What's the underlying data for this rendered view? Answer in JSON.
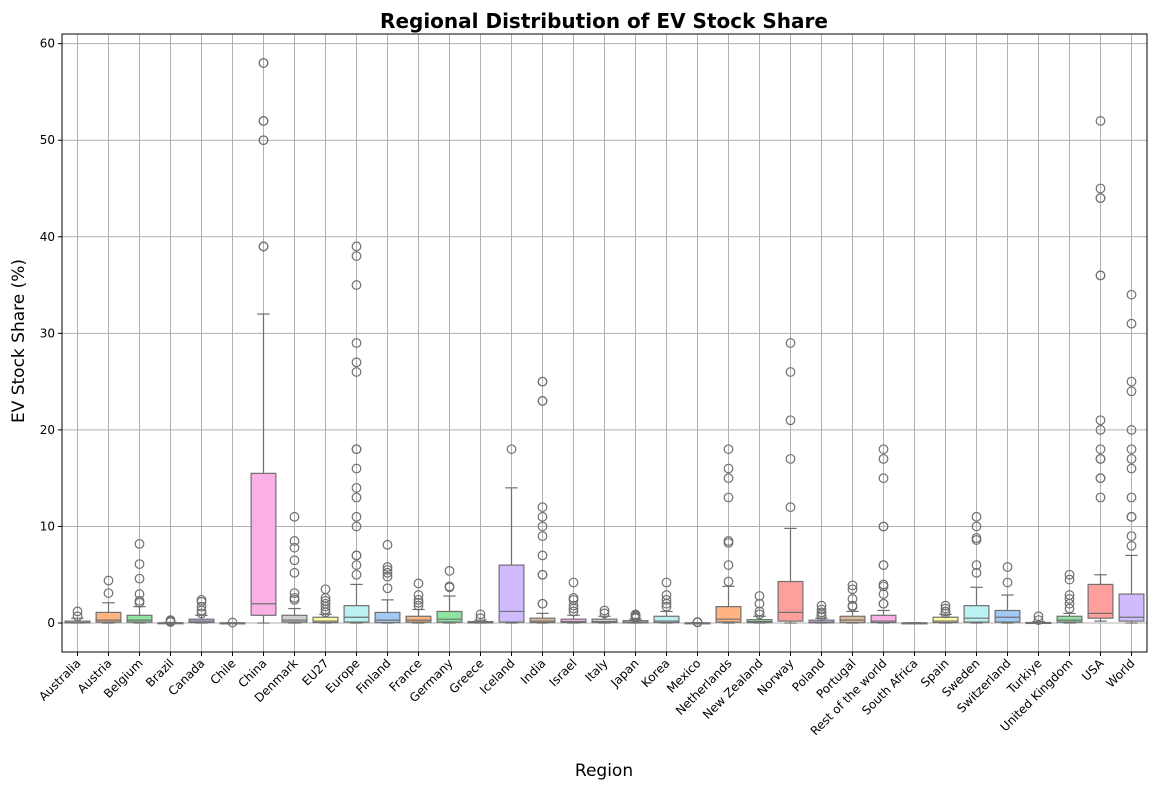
{
  "chart_data": {
    "type": "box",
    "title": "Regional Distribution of EV Stock Share",
    "xlabel": "Region",
    "ylabel": "EV Stock Share (%)",
    "ylim": [
      -3,
      61
    ],
    "yticks": [
      0,
      10,
      20,
      30,
      40,
      50,
      60
    ],
    "grid": true,
    "categories": [
      "Australia",
      "Austria",
      "Belgium",
      "Brazil",
      "Canada",
      "Chile",
      "China",
      "Denmark",
      "EU27",
      "Europe",
      "Finland",
      "France",
      "Germany",
      "Greece",
      "Iceland",
      "India",
      "Israel",
      "Italy",
      "Japan",
      "Korea",
      "Mexico",
      "Netherlands",
      "New Zealand",
      "Norway",
      "Poland",
      "Portugal",
      "Rest of the world",
      "South Africa",
      "Spain",
      "Sweden",
      "Switzerland",
      "Turkiye",
      "United Kingdom",
      "USA",
      "World"
    ],
    "boxes": [
      {
        "region": "Australia",
        "whislo": 0,
        "q1": 0.02,
        "med": 0.05,
        "q3": 0.2,
        "whishi": 0.5,
        "fliers": [
          0.7,
          1.2
        ],
        "color": "#a1c9f4"
      },
      {
        "region": "Austria",
        "whislo": 0,
        "q1": 0.1,
        "med": 0.3,
        "q3": 1.1,
        "whishi": 2.1,
        "fliers": [
          3.1,
          4.4
        ],
        "color": "#ffb482"
      },
      {
        "region": "Belgium",
        "whislo": 0,
        "q1": 0.1,
        "med": 0.3,
        "q3": 0.8,
        "whishi": 1.7,
        "fliers": [
          2.1,
          2.3,
          3.0,
          4.6,
          6.1,
          8.2
        ],
        "color": "#8de5a1"
      },
      {
        "region": "Brazil",
        "whislo": 0,
        "q1": 0.0,
        "med": 0.01,
        "q3": 0.03,
        "whishi": 0.07,
        "fliers": [
          0.1,
          0.2,
          0.3
        ],
        "color": "#ff9f9b"
      },
      {
        "region": "Canada",
        "whislo": 0,
        "q1": 0.05,
        "med": 0.2,
        "q3": 0.4,
        "whishi": 0.8,
        "fliers": [
          1.0,
          1.3,
          1.7,
          2.2,
          2.4
        ],
        "color": "#d0bbff"
      },
      {
        "region": "Chile",
        "whislo": 0,
        "q1": 0.0,
        "med": 0.01,
        "q3": 0.02,
        "whishi": 0.03,
        "fliers": [
          0.05
        ],
        "color": "#debb9b"
      },
      {
        "region": "China",
        "whislo": 0,
        "q1": 0.8,
        "med": 2.0,
        "q3": 15.5,
        "whishi": 32,
        "fliers": [
          39,
          39,
          50,
          50,
          52,
          52,
          58,
          58
        ],
        "color": "#fab0e4"
      },
      {
        "region": "Denmark",
        "whislo": 0,
        "q1": 0.1,
        "med": 0.3,
        "q3": 0.8,
        "whishi": 1.5,
        "fliers": [
          2.4,
          2.6,
          3.1,
          5.2,
          6.5,
          7.8,
          8.5,
          11
        ],
        "color": "#cfcfcf"
      },
      {
        "region": "EU27",
        "whislo": 0,
        "q1": 0.05,
        "med": 0.2,
        "q3": 0.6,
        "whishi": 0.9,
        "fliers": [
          1.1,
          1.4,
          1.7,
          2.0,
          2.3,
          2.6,
          3.5
        ],
        "color": "#fffea3"
      },
      {
        "region": "Europe",
        "whislo": 0,
        "q1": 0.1,
        "med": 0.6,
        "q3": 1.8,
        "whishi": 4.0,
        "fliers": [
          5,
          6,
          7,
          7,
          10,
          11,
          13,
          14,
          16,
          18,
          18,
          26,
          27,
          29,
          35,
          38,
          39
        ],
        "color": "#b9f2f0"
      },
      {
        "region": "Finland",
        "whislo": 0,
        "q1": 0.05,
        "med": 0.3,
        "q3": 1.1,
        "whishi": 2.4,
        "fliers": [
          3.6,
          4.8,
          5.2,
          5.5,
          5.8,
          8.1
        ],
        "color": "#a1c9f4"
      },
      {
        "region": "France",
        "whislo": 0,
        "q1": 0.1,
        "med": 0.3,
        "q3": 0.7,
        "whishi": 1.4,
        "fliers": [
          1.8,
          2.1,
          2.4,
          2.9,
          4.1
        ],
        "color": "#ffb482"
      },
      {
        "region": "Germany",
        "whislo": 0,
        "q1": 0.1,
        "med": 0.4,
        "q3": 1.2,
        "whishi": 2.8,
        "fliers": [
          3.7,
          3.8,
          5.4
        ],
        "color": "#8de5a1"
      },
      {
        "region": "Greece",
        "whislo": 0,
        "q1": 0.01,
        "med": 0.05,
        "q3": 0.15,
        "whishi": 0.3,
        "fliers": [
          0.5,
          0.9
        ],
        "color": "#ff9f9b"
      },
      {
        "region": "Iceland",
        "whislo": 0,
        "q1": 0.1,
        "med": 1.2,
        "q3": 6.0,
        "whishi": 14,
        "fliers": [
          18
        ],
        "color": "#d0bbff"
      },
      {
        "region": "India",
        "whislo": 0,
        "q1": 0.05,
        "med": 0.2,
        "q3": 0.5,
        "whishi": 1.0,
        "fliers": [
          2,
          2,
          5,
          5,
          7,
          9,
          10,
          11,
          12,
          23,
          23,
          25,
          25
        ],
        "color": "#debb9b"
      },
      {
        "region": "Israel",
        "whislo": 0,
        "q1": 0.05,
        "med": 0.15,
        "q3": 0.4,
        "whishi": 0.8,
        "fliers": [
          1.2,
          1.5,
          1.8,
          2.4,
          2.6,
          4.2
        ],
        "color": "#fab0e4"
      },
      {
        "region": "Italy",
        "whislo": 0,
        "q1": 0.05,
        "med": 0.15,
        "q3": 0.4,
        "whishi": 0.7,
        "fliers": [
          1.0,
          1.3
        ],
        "color": "#cfcfcf"
      },
      {
        "region": "Japan",
        "whislo": 0,
        "q1": 0.02,
        "med": 0.1,
        "q3": 0.25,
        "whishi": 0.4,
        "fliers": [
          0.5,
          0.6,
          0.7,
          0.8,
          0.9
        ],
        "color": "#fffea3"
      },
      {
        "region": "Korea",
        "whislo": 0,
        "q1": 0.05,
        "med": 0.2,
        "q3": 0.7,
        "whishi": 1.2,
        "fliers": [
          1.7,
          2.0,
          2.4,
          2.9,
          4.2
        ],
        "color": "#b9f2f0"
      },
      {
        "region": "Mexico",
        "whislo": 0,
        "q1": 0.0,
        "med": 0.01,
        "q3": 0.02,
        "whishi": 0.04,
        "fliers": [
          0.07,
          0.1
        ],
        "color": "#a1c9f4"
      },
      {
        "region": "Netherlands",
        "whislo": 0,
        "q1": 0.1,
        "med": 0.4,
        "q3": 1.7,
        "whishi": 3.8,
        "fliers": [
          4.3,
          6,
          8.3,
          8.5,
          13,
          15,
          16,
          18
        ],
        "color": "#ffb482"
      },
      {
        "region": "New Zealand",
        "whislo": 0,
        "q1": 0.05,
        "med": 0.15,
        "q3": 0.35,
        "whishi": 0.7,
        "fliers": [
          0.9,
          1.2,
          2.0,
          2.8
        ],
        "color": "#8de5a1"
      },
      {
        "region": "Norway",
        "whislo": 0,
        "q1": 0.2,
        "med": 1.1,
        "q3": 4.3,
        "whishi": 9.8,
        "fliers": [
          12,
          17,
          21,
          26,
          29
        ],
        "color": "#ff9f9b"
      },
      {
        "region": "Poland",
        "whislo": 0,
        "q1": 0.02,
        "med": 0.1,
        "q3": 0.3,
        "whishi": 0.5,
        "fliers": [
          0.7,
          0.9,
          1.1,
          1.4,
          1.8
        ],
        "color": "#d0bbff"
      },
      {
        "region": "Portugal",
        "whislo": 0,
        "q1": 0.05,
        "med": 0.3,
        "q3": 0.7,
        "whishi": 1.2,
        "fliers": [
          1.7,
          1.8,
          2.5,
          3.5,
          3.9
        ],
        "color": "#debb9b"
      },
      {
        "region": "Rest of the world",
        "whislo": 0,
        "q1": 0.05,
        "med": 0.2,
        "q3": 0.8,
        "whishi": 1.3,
        "fliers": [
          2,
          2,
          3,
          3.8,
          4,
          6,
          6,
          10,
          10,
          15,
          17,
          18
        ],
        "color": "#fab0e4"
      },
      {
        "region": "South Africa",
        "whislo": 0,
        "q1": 0.0,
        "med": 0.01,
        "q3": 0.02,
        "whishi": 0.04,
        "fliers": [],
        "color": "#cfcfcf"
      },
      {
        "region": "Spain",
        "whislo": 0,
        "q1": 0.05,
        "med": 0.2,
        "q3": 0.6,
        "whishi": 0.9,
        "fliers": [
          1.0,
          1.2,
          1.5,
          1.8
        ],
        "color": "#fffea3"
      },
      {
        "region": "Sweden",
        "whislo": 0,
        "q1": 0.1,
        "med": 0.5,
        "q3": 1.8,
        "whishi": 3.7,
        "fliers": [
          5.2,
          6,
          8.6,
          8.8,
          10,
          11
        ],
        "color": "#b9f2f0"
      },
      {
        "region": "Switzerland",
        "whislo": 0,
        "q1": 0.1,
        "med": 0.6,
        "q3": 1.3,
        "whishi": 2.9,
        "fliers": [
          4.2,
          5.8
        ],
        "color": "#a1c9f4"
      },
      {
        "region": "Turkiye",
        "whislo": 0,
        "q1": 0.0,
        "med": 0.02,
        "q3": 0.06,
        "whishi": 0.15,
        "fliers": [
          0.3,
          0.7
        ],
        "color": "#ffb482"
      },
      {
        "region": "United Kingdom",
        "whislo": 0,
        "q1": 0.1,
        "med": 0.3,
        "q3": 0.7,
        "whishi": 1.0,
        "fliers": [
          1.5,
          2.0,
          2.5,
          2.9,
          4.5,
          5.0
        ],
        "color": "#8de5a1"
      },
      {
        "region": "USA",
        "whislo": 0.2,
        "q1": 0.5,
        "med": 1.0,
        "q3": 4.0,
        "whishi": 5.0,
        "fliers": [
          13,
          15,
          15,
          17,
          17,
          18,
          20,
          21,
          36,
          36,
          44,
          44,
          45,
          52
        ],
        "color": "#ff9f9b"
      },
      {
        "region": "World",
        "whislo": 0,
        "q1": 0.2,
        "med": 0.6,
        "q3": 3.0,
        "whishi": 7.0,
        "fliers": [
          8,
          9,
          11,
          11,
          13,
          16,
          17,
          18,
          20,
          24,
          25,
          31,
          34
        ],
        "color": "#d0bbff"
      }
    ]
  }
}
